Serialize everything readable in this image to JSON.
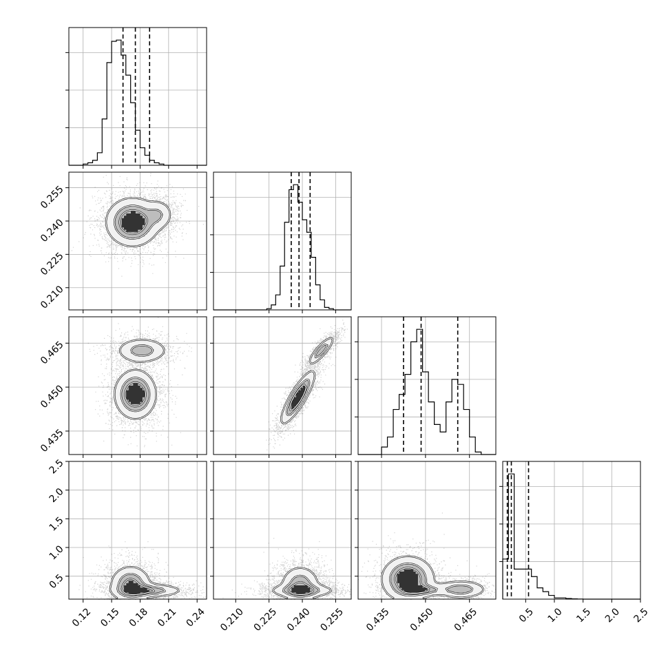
{
  "chart_data": {
    "type": "corner",
    "grid": true,
    "params": [
      {
        "range": [
          0.105,
          0.25
        ],
        "ticks": [
          0.12,
          0.15,
          0.18,
          0.21,
          0.24
        ],
        "tick_labels": [
          "0.12",
          "0.15",
          "0.18",
          "0.21",
          "0.24"
        ]
      },
      {
        "range": [
          0.2,
          0.262
        ],
        "ticks": [
          0.21,
          0.225,
          0.24,
          0.255
        ],
        "tick_labels": [
          "0.210",
          "0.225",
          "0.240",
          "0.255"
        ]
      },
      {
        "range": [
          0.427,
          0.474
        ],
        "ticks": [
          0.435,
          0.45,
          0.465
        ],
        "tick_labels": [
          "0.435",
          "0.450",
          "0.465"
        ]
      },
      {
        "range": [
          0.1,
          2.5
        ],
        "ticks": [
          0.5,
          1.0,
          1.5,
          2.0,
          2.5
        ],
        "tick_labels": [
          "0.5",
          "1.0",
          "1.5",
          "2.0",
          "2.5"
        ]
      }
    ],
    "y_axis": {
      "rows": [
        1,
        2,
        3
      ],
      "row_3_ticks": [
        0.5,
        1.0,
        1.5,
        2.0,
        2.5
      ],
      "row_3_labels": [
        "0.5",
        "1.0",
        "1.5",
        "2.0",
        "2.5"
      ]
    },
    "histograms": [
      {
        "param": 0,
        "bin_edges": [
          0.105,
          0.11,
          0.115,
          0.12,
          0.125,
          0.13,
          0.135,
          0.14,
          0.145,
          0.15,
          0.155,
          0.16,
          0.165,
          0.17,
          0.175,
          0.18,
          0.185,
          0.19,
          0.195,
          0.2,
          0.205,
          0.21,
          0.215,
          0.22,
          0.225,
          0.23,
          0.235,
          0.24,
          0.245,
          0.25
        ],
        "counts": [
          0,
          0,
          0,
          0.01,
          0.02,
          0.04,
          0.1,
          0.37,
          0.82,
          0.99,
          1.0,
          0.88,
          0.72,
          0.5,
          0.28,
          0.14,
          0.08,
          0.04,
          0.02,
          0.01,
          0,
          0,
          0,
          0,
          0,
          0,
          0,
          0,
          0
        ],
        "quantiles": [
          0.162,
          0.175,
          0.19
        ]
      },
      {
        "param": 1,
        "bin_edges": [
          0.2,
          0.202,
          0.204,
          0.206,
          0.208,
          0.21,
          0.212,
          0.214,
          0.216,
          0.218,
          0.22,
          0.222,
          0.224,
          0.226,
          0.228,
          0.23,
          0.232,
          0.234,
          0.236,
          0.238,
          0.24,
          0.242,
          0.244,
          0.246,
          0.248,
          0.25,
          0.252,
          0.254,
          0.256,
          0.258,
          0.26,
          0.262
        ],
        "counts": [
          0,
          0,
          0,
          0,
          0,
          0,
          0,
          0,
          0,
          0,
          0,
          0,
          0.01,
          0.04,
          0.12,
          0.35,
          0.7,
          0.96,
          1.0,
          0.86,
          0.72,
          0.62,
          0.42,
          0.2,
          0.08,
          0.02,
          0.01,
          0,
          0,
          0,
          0
        ],
        "quantiles": [
          0.235,
          0.2385,
          0.2435
        ]
      },
      {
        "param": 2,
        "bin_edges": [
          0.427,
          0.429,
          0.431,
          0.433,
          0.435,
          0.437,
          0.439,
          0.441,
          0.443,
          0.445,
          0.447,
          0.449,
          0.451,
          0.453,
          0.455,
          0.457,
          0.459,
          0.461,
          0.463,
          0.465,
          0.467,
          0.469,
          0.471,
          0.473,
          0.474
        ],
        "counts": [
          0,
          0,
          0,
          0,
          0.06,
          0.14,
          0.36,
          0.48,
          0.64,
          0.9,
          1.0,
          0.66,
          0.42,
          0.24,
          0.18,
          0.42,
          0.6,
          0.56,
          0.36,
          0.14,
          0.02,
          0,
          0,
          0
        ],
        "quantiles": [
          0.4425,
          0.4485,
          0.461
        ]
      },
      {
        "param": 3,
        "bin_edges": [
          0.1,
          0.2,
          0.3,
          0.4,
          0.5,
          0.6,
          0.7,
          0.8,
          0.9,
          1.0,
          1.1,
          1.2,
          1.3,
          1.4,
          1.5,
          1.6,
          1.7,
          1.8,
          1.9,
          2.0,
          2.1,
          2.2,
          2.3,
          2.4,
          2.5
        ],
        "counts": [
          0.32,
          1.0,
          0.24,
          0.24,
          0.24,
          0.18,
          0.09,
          0.06,
          0.03,
          0.01,
          0.01,
          0.005,
          0.002,
          0.001,
          0,
          0,
          0,
          0,
          0,
          0,
          0,
          0,
          0,
          0
        ],
        "quantiles": [
          0.18,
          0.25,
          0.55
        ]
      }
    ],
    "pairs": [
      {
        "row": 1,
        "col": 0,
        "modes": [
          {
            "x": 0.172,
            "y": 0.2395,
            "sx": 0.014,
            "sy": 0.0055,
            "w": 1.0,
            "rho": 0.0
          },
          {
            "x": 0.2,
            "y": 0.243,
            "sx": 0.008,
            "sy": 0.0035,
            "w": 0.35,
            "rho": 0.0
          }
        ]
      },
      {
        "row": 2,
        "col": 0,
        "modes": [
          {
            "x": 0.175,
            "y": 0.4475,
            "sx": 0.011,
            "sy": 0.0042,
            "w": 1.0,
            "rho": 0.0
          },
          {
            "x": 0.182,
            "y": 0.4625,
            "sx": 0.014,
            "sy": 0.0022,
            "w": 0.55,
            "rho": 0.0
          }
        ]
      },
      {
        "row": 2,
        "col": 1,
        "modes": [
          {
            "x": 0.238,
            "y": 0.4465,
            "sx": 0.0038,
            "sy": 0.0045,
            "w": 1.0,
            "rho": 0.85
          },
          {
            "x": 0.2485,
            "y": 0.4625,
            "sx": 0.003,
            "sy": 0.0025,
            "w": 0.6,
            "rho": 0.85
          }
        ]
      },
      {
        "row": 3,
        "col": 0,
        "modes": [
          {
            "x": 0.17,
            "y": 0.35,
            "sx": 0.011,
            "sy": 0.17,
            "w": 1.0,
            "rho": 0.0
          },
          {
            "x": 0.19,
            "y": 0.25,
            "sx": 0.018,
            "sy": 0.06,
            "w": 0.8,
            "rho": 0.0
          }
        ]
      },
      {
        "row": 3,
        "col": 1,
        "modes": [
          {
            "x": 0.239,
            "y": 0.35,
            "sx": 0.0045,
            "sy": 0.17,
            "w": 1.0,
            "rho": 0.0
          },
          {
            "x": 0.24,
            "y": 0.25,
            "sx": 0.008,
            "sy": 0.06,
            "w": 0.8,
            "rho": 0.0
          }
        ]
      },
      {
        "row": 3,
        "col": 2,
        "modes": [
          {
            "x": 0.444,
            "y": 0.45,
            "sx": 0.0045,
            "sy": 0.2,
            "w": 1.0,
            "rho": 0.0
          },
          {
            "x": 0.462,
            "y": 0.27,
            "sx": 0.0045,
            "sy": 0.08,
            "w": 0.6,
            "rho": 0.0
          },
          {
            "x": 0.449,
            "y": 0.26,
            "sx": 0.004,
            "sy": 0.05,
            "w": 0.5,
            "rho": 0.0
          }
        ]
      }
    ]
  }
}
